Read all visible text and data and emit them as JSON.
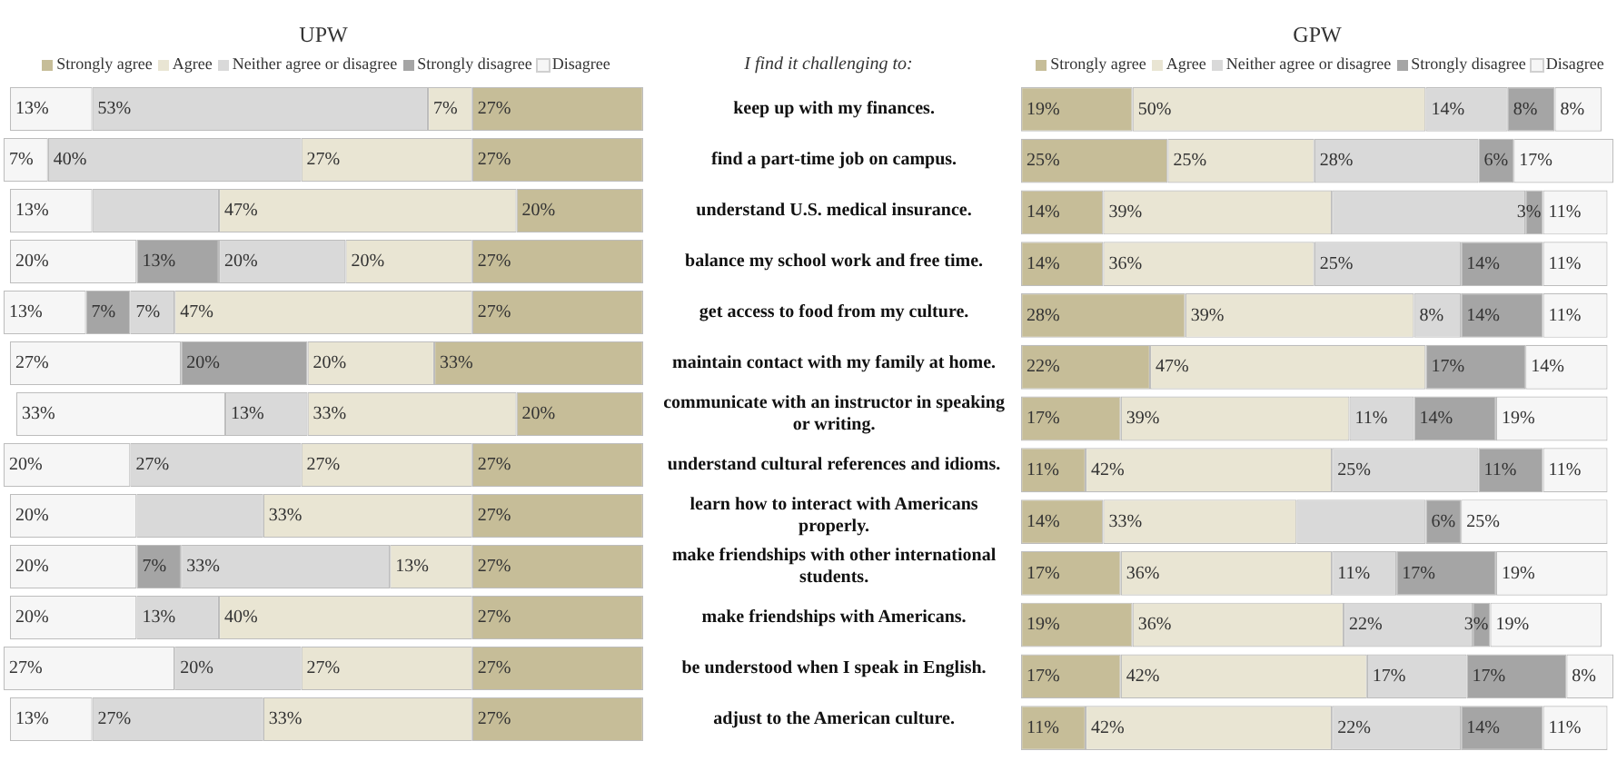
{
  "chart_data": [
    {
      "type": "bar",
      "title": "UPW",
      "orientation": "horizontal",
      "stacked": true,
      "legend": "top",
      "tick_labels": "y",
      "xlim": [
        101,
        0
      ],
      "annotations": [
        "I find it challenging to:"
      ],
      "categories": [
        "keep up with my finances.",
        "find a part-time job on campus.",
        "understand U.S. medical insurance.",
        "balance my school work and free time.",
        "get access to food from my culture.",
        "maintain contact with my family at home.",
        "communicate with an instructor in speaking or writing.",
        "understand cultural references and idioms.",
        "learn how to interact with Americans properly.",
        "make friendships with other international students.",
        "make friendships with Americans.",
        "be understood when I speak in English.",
        "adjust to the American culture."
      ],
      "series": [
        {
          "name": "Strongly agree",
          "color": "#c6bd98",
          "values": [
            27,
            27,
            20,
            27,
            27,
            33,
            20,
            27,
            27,
            27,
            27,
            27,
            27
          ],
          "value_labels": [
            "27%",
            "27%",
            "20%",
            "27%",
            "27%",
            "33%",
            "20%",
            "27%",
            "27%",
            "27%",
            "27%",
            "27%",
            "27%"
          ]
        },
        {
          "name": "Agree",
          "color": "#e9e5d3",
          "values": [
            7,
            27,
            47,
            20,
            47,
            20,
            33,
            27,
            33,
            13,
            40,
            27,
            33
          ],
          "value_labels": [
            "7%",
            "27%",
            "47%",
            "20%",
            "47%",
            "20%",
            "33%",
            "27%",
            "33%",
            "13%",
            "40%",
            "27%",
            "33%"
          ]
        },
        {
          "name": "Neither agree or disagree",
          "color": "#d9d9d9",
          "values": [
            53,
            40,
            20,
            20,
            7,
            0,
            13,
            27,
            20,
            33,
            13,
            20,
            27
          ],
          "value_labels": [
            "53%",
            "40%",
            null,
            "20%",
            "7%",
            null,
            "13%",
            "27%",
            null,
            "33%",
            "13%",
            "20%",
            "27%"
          ]
        },
        {
          "name": "Strongly disagree",
          "color": "#a5a5a5",
          "values": [
            0,
            0,
            0,
            13,
            7,
            20,
            0,
            0,
            0,
            7,
            0,
            0,
            0
          ],
          "value_labels": [
            null,
            null,
            null,
            "13%",
            "7%",
            "20%",
            null,
            null,
            null,
            "7%",
            null,
            null,
            null
          ]
        },
        {
          "name": "Disagree",
          "color": "#f6f6f6",
          "values": [
            13,
            7,
            13,
            20,
            13,
            27,
            33,
            20,
            20,
            20,
            20,
            27,
            13
          ],
          "value_labels": [
            "13%",
            "7%",
            "13%",
            "20%",
            "13%",
            "27%",
            "33%",
            "20%",
            "20%",
            "20%",
            "20%",
            "27%",
            "13%"
          ]
        }
      ]
    },
    {
      "type": "bar",
      "title": "GPW",
      "orientation": "horizontal",
      "stacked": true,
      "legend": "top",
      "tick_labels": false,
      "xlim": [
        0,
        101
      ],
      "categories": [
        null,
        null,
        null,
        null,
        null,
        null,
        null,
        null,
        null,
        null,
        null,
        null,
        null
      ],
      "series": [
        {
          "name": "Strongly agree",
          "color": "#c6bd98",
          "values": [
            19,
            25,
            14,
            14,
            28,
            22,
            17,
            11,
            14,
            17,
            19,
            17,
            11
          ],
          "value_labels": [
            "19%",
            "25%",
            "14%",
            "14%",
            "28%",
            "22%",
            "17%",
            "11%",
            "14%",
            "17%",
            "19%",
            "17%",
            "11%"
          ]
        },
        {
          "name": "Agree",
          "color": "#e9e5d3",
          "values": [
            50,
            25,
            39,
            36,
            39,
            47,
            39,
            42,
            33,
            36,
            36,
            42,
            42
          ],
          "value_labels": [
            "50%",
            "25%",
            "39%",
            "36%",
            "39%",
            "47%",
            "39%",
            "42%",
            "33%",
            "36%",
            "36%",
            "42%",
            "42%"
          ]
        },
        {
          "name": "Neither agree or disagree",
          "color": "#d9d9d9",
          "values": [
            14,
            28,
            33,
            25,
            8,
            0,
            11,
            25,
            22,
            11,
            22,
            17,
            22
          ],
          "value_labels": [
            "14%",
            "28%",
            null,
            "25%",
            "8%",
            null,
            "11%",
            "25%",
            null,
            "11%",
            "22%",
            "17%",
            "22%"
          ]
        },
        {
          "name": "Strongly disagree",
          "color": "#a5a5a5",
          "values": [
            8,
            6,
            3,
            14,
            14,
            17,
            14,
            11,
            6,
            17,
            3,
            17,
            14
          ],
          "value_labels": [
            "8%",
            "6%",
            "3%",
            "14%",
            "14%",
            "17%",
            "14%",
            "11%",
            "6%",
            "17%",
            "3%",
            "17%",
            "14%"
          ]
        },
        {
          "name": "Disagree",
          "color": "#f6f6f6",
          "values": [
            8,
            17,
            11,
            11,
            11,
            14,
            19,
            11,
            25,
            19,
            19,
            8,
            11
          ],
          "value_labels": [
            "8%",
            "17%",
            "11%",
            "11%",
            "11%",
            "14%",
            "19%",
            "11%",
            "25%",
            "19%",
            "19%",
            "8%",
            "11%"
          ]
        }
      ]
    }
  ]
}
